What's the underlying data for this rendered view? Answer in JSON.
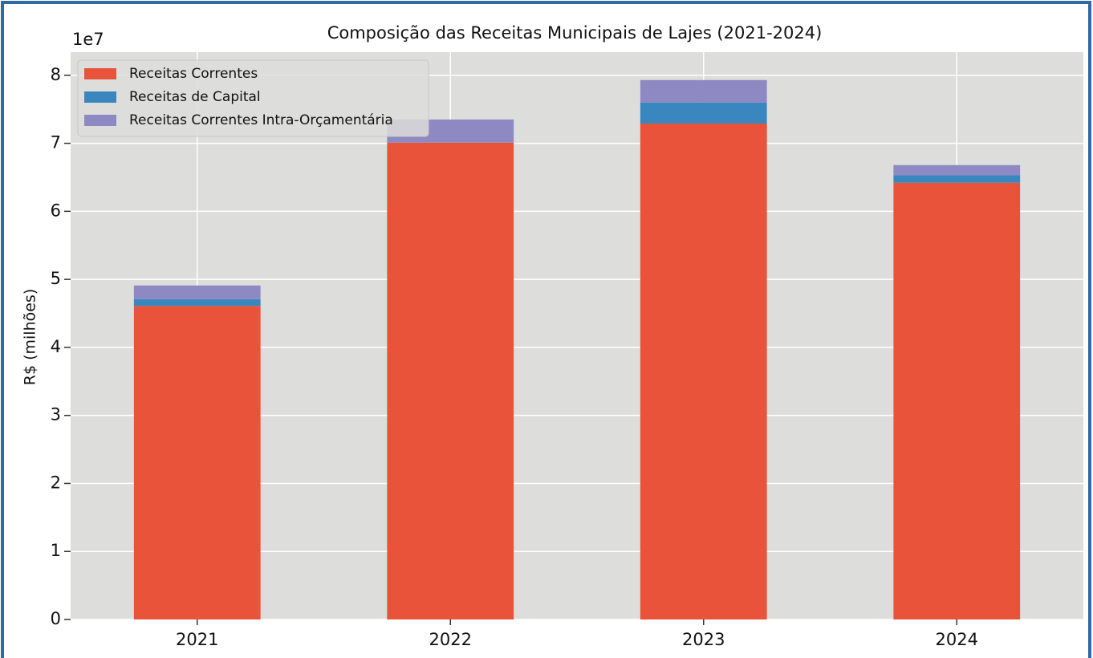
{
  "chart_data": {
    "type": "stacked_bar",
    "title": "Composição das Receitas Municipais de Lajes (2021-2024)",
    "y_label": "R$ (milhões)",
    "y_offset_label": "1e7",
    "categories": [
      "2021",
      "2022",
      "2023",
      "2024"
    ],
    "series": [
      {
        "name": "Receitas Correntes",
        "color": "#e8533a",
        "values": [
          46100000,
          70100000,
          72900000,
          64200000
        ]
      },
      {
        "name": "Receitas de Capital",
        "color": "#3a87bf",
        "values": [
          1000000,
          0,
          3100000,
          1100000
        ]
      },
      {
        "name": "Receitas Correntes Intra-Orçamentária",
        "color": "#8e89c2",
        "values": [
          2000000,
          3400000,
          3300000,
          1500000
        ]
      }
    ],
    "ylim": [
      0,
      83400000
    ],
    "yticks": [
      {
        "value": 0,
        "label": "0"
      },
      {
        "value": 10000000,
        "label": "1"
      },
      {
        "value": 20000000,
        "label": "2"
      },
      {
        "value": 30000000,
        "label": "3"
      },
      {
        "value": 40000000,
        "label": "4"
      },
      {
        "value": 50000000,
        "label": "5"
      },
      {
        "value": 60000000,
        "label": "6"
      },
      {
        "value": 70000000,
        "label": "7"
      },
      {
        "value": 80000000,
        "label": "8"
      }
    ],
    "grid": true,
    "legend": "upper left"
  }
}
